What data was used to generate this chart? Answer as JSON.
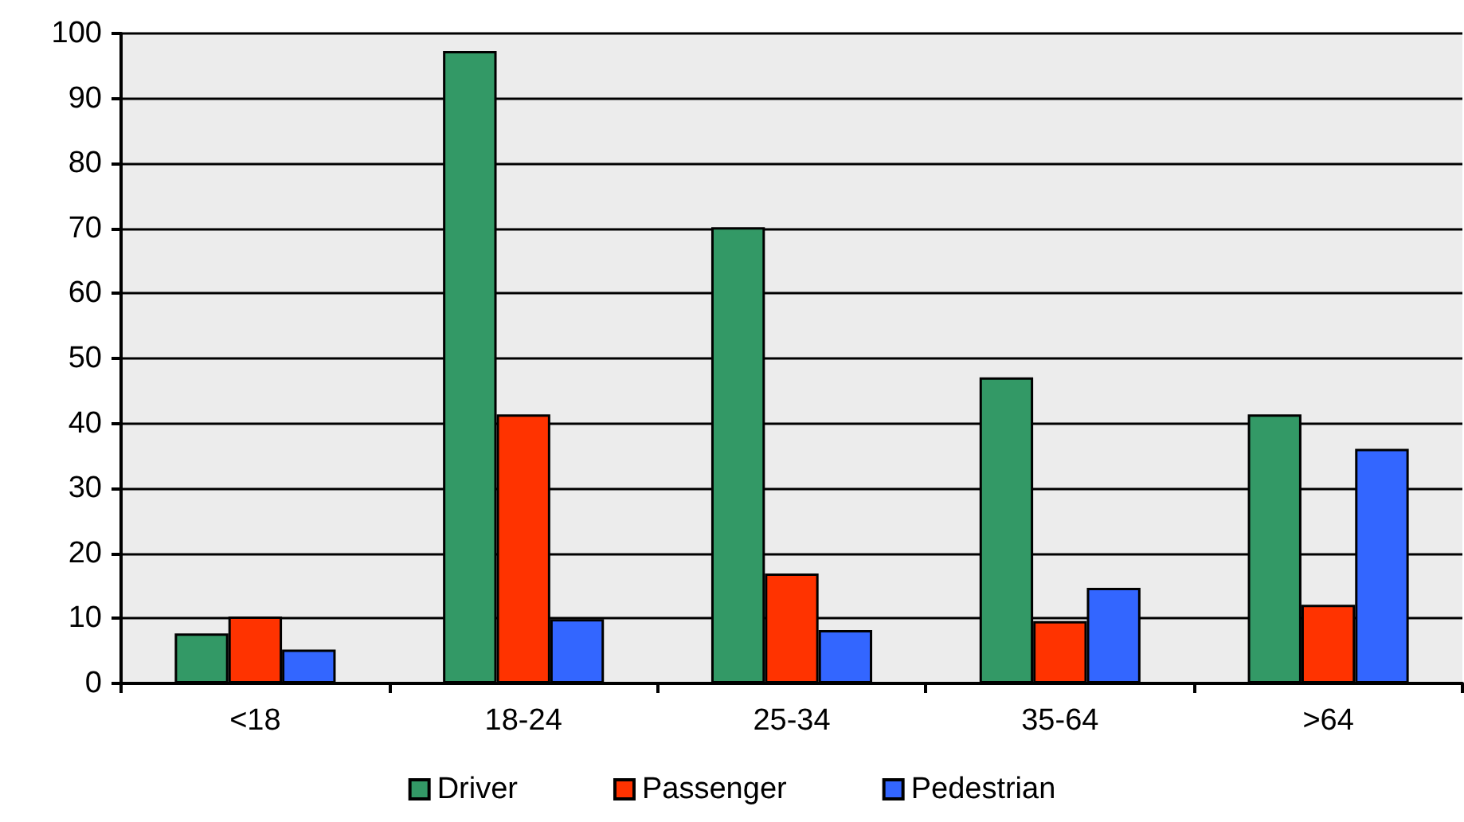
{
  "chart_data": {
    "type": "bar",
    "categories": [
      "<18",
      "18-24",
      "25-34",
      "35-64",
      ">64"
    ],
    "series": [
      {
        "name": "Driver",
        "color": "#339966",
        "values": [
          7.7,
          97.3,
          70.2,
          47.1,
          41.4
        ]
      },
      {
        "name": "Passenger",
        "color": "#ff3300",
        "values": [
          10.3,
          41.4,
          16.9,
          9.6,
          12.1
        ]
      },
      {
        "name": "Pedestrian",
        "color": "#3366ff",
        "values": [
          5.2,
          9.9,
          8.2,
          14.7,
          36.1
        ]
      }
    ],
    "ylim": [
      0,
      100
    ],
    "yticks": [
      0,
      10,
      20,
      30,
      40,
      50,
      60,
      70,
      80,
      90,
      100
    ],
    "grid": "y",
    "legend": "bottom"
  }
}
